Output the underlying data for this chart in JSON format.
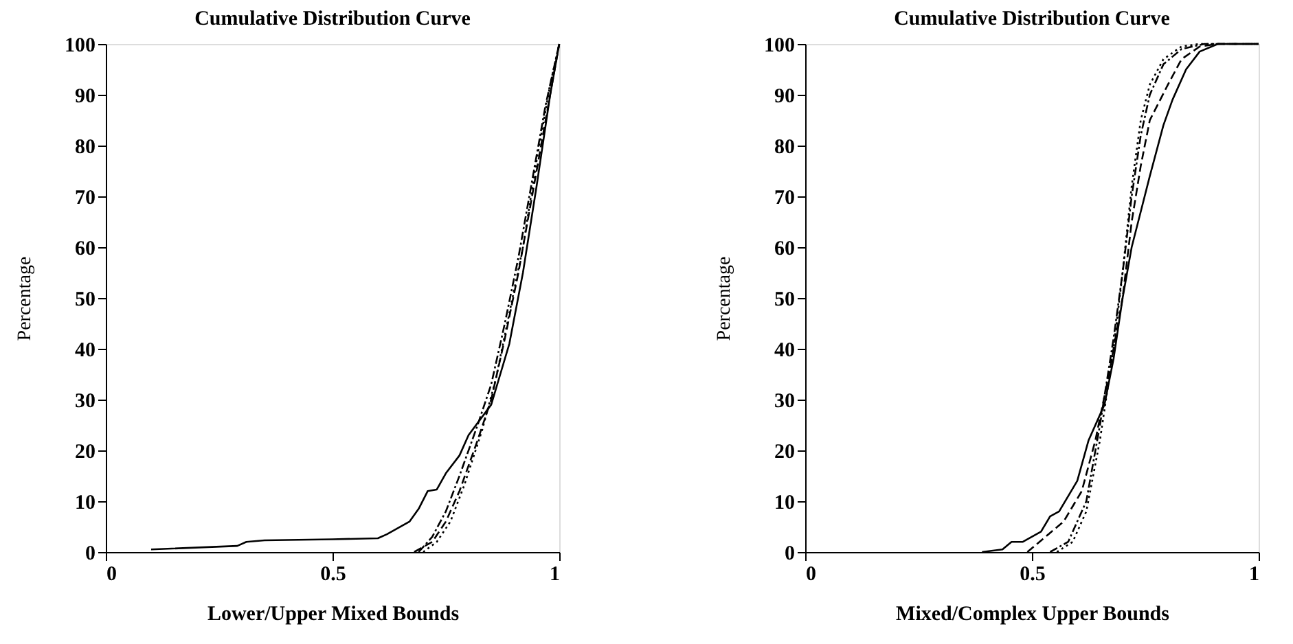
{
  "chart_data": [
    {
      "type": "line",
      "title": "Cumulative Distribution Curve",
      "xlabel": "Lower/Upper Mixed Bounds",
      "ylabel": "Percentage",
      "xlim": [
        0,
        1
      ],
      "ylim": [
        0,
        100
      ],
      "xticks": [
        0,
        0.5,
        1
      ],
      "yticks": [
        0,
        10,
        20,
        30,
        40,
        50,
        60,
        70,
        80,
        90,
        100
      ],
      "grid": false,
      "marker": "none",
      "series": [
        {
          "color": "#000000",
          "line_style": "solid",
          "x": [
            0.1,
            0.29,
            0.31,
            0.35,
            0.5,
            0.6,
            0.62,
            0.67,
            0.69,
            0.71,
            0.73,
            0.75,
            0.78,
            0.8,
            0.85,
            0.87,
            0.89,
            0.92,
            0.95,
            0.98,
            1.0
          ],
          "values": [
            0.5,
            1.2,
            2,
            2.3,
            2.5,
            2.7,
            3.5,
            6,
            8.5,
            12,
            12.3,
            15.5,
            19,
            23,
            29,
            35,
            41,
            55,
            72,
            90,
            100
          ]
        },
        {
          "color": "#000000",
          "line_style": "dashed",
          "x": [
            0.68,
            0.72,
            0.75,
            0.78,
            0.82,
            0.85,
            0.88,
            0.91,
            0.94,
            0.97,
            1.0
          ],
          "values": [
            0,
            2,
            6,
            12,
            22,
            30,
            42,
            55,
            70,
            85,
            100
          ]
        },
        {
          "color": "#000000",
          "line_style": "dashdot",
          "x": [
            0.69,
            0.72,
            0.75,
            0.78,
            0.82,
            0.85,
            0.88,
            0.91,
            0.94,
            0.97,
            1.0
          ],
          "values": [
            0,
            3,
            8,
            15,
            25,
            33,
            45,
            58,
            73,
            88,
            100
          ]
        },
        {
          "color": "#000000",
          "line_style": "dotted",
          "x": [
            0.7,
            0.73,
            0.76,
            0.79,
            0.83,
            0.86,
            0.89,
            0.92,
            0.95,
            0.98,
            1.0
          ],
          "values": [
            0,
            2,
            6,
            13,
            24,
            34,
            47,
            60,
            77,
            92,
            100
          ]
        }
      ]
    },
    {
      "type": "line",
      "title": "Cumulative Distribution Curve",
      "xlabel": "Mixed/Complex Upper Bounds",
      "ylabel": "Percentage",
      "xlim": [
        0,
        1
      ],
      "ylim": [
        0,
        100
      ],
      "xticks": [
        0,
        0.5,
        1
      ],
      "yticks": [
        0,
        10,
        20,
        30,
        40,
        50,
        60,
        70,
        80,
        90,
        100
      ],
      "grid": false,
      "marker": "none",
      "series": [
        {
          "color": "#000000",
          "line_style": "solid",
          "x": [
            0.39,
            0.435,
            0.455,
            0.48,
            0.52,
            0.54,
            0.56,
            0.6,
            0.625,
            0.66,
            0.68,
            0.7,
            0.72,
            0.74,
            0.76,
            0.79,
            0.81,
            0.84,
            0.87,
            0.91,
            1.0
          ],
          "values": [
            0,
            0.5,
            2,
            2,
            4,
            7,
            8,
            14,
            22,
            29,
            38,
            50,
            60,
            67,
            74,
            84,
            89,
            95,
            98.5,
            100,
            100
          ]
        },
        {
          "color": "#000000",
          "line_style": "dashed",
          "x": [
            0.49,
            0.53,
            0.57,
            0.61,
            0.64,
            0.67,
            0.7,
            0.72,
            0.74,
            0.76,
            0.8,
            0.83,
            0.87,
            0.91,
            1.0
          ],
          "values": [
            0,
            3,
            6,
            12,
            22,
            35,
            50,
            65,
            76,
            85,
            92,
            97,
            99.5,
            100,
            100
          ]
        },
        {
          "color": "#000000",
          "line_style": "dashdot",
          "x": [
            0.54,
            0.58,
            0.62,
            0.65,
            0.68,
            0.7,
            0.72,
            0.74,
            0.76,
            0.79,
            0.83,
            0.88,
            1.0
          ],
          "values": [
            0,
            2,
            10,
            25,
            42,
            55,
            70,
            82,
            90,
            96,
            99,
            100,
            100
          ]
        },
        {
          "color": "#000000",
          "line_style": "dotted",
          "x": [
            0.555,
            0.59,
            0.62,
            0.65,
            0.68,
            0.7,
            0.72,
            0.74,
            0.76,
            0.79,
            0.83,
            0.87,
            1.0
          ],
          "values": [
            0,
            2,
            8,
            22,
            40,
            55,
            72,
            85,
            92,
            97,
            99.5,
            100,
            100
          ]
        }
      ]
    }
  ]
}
